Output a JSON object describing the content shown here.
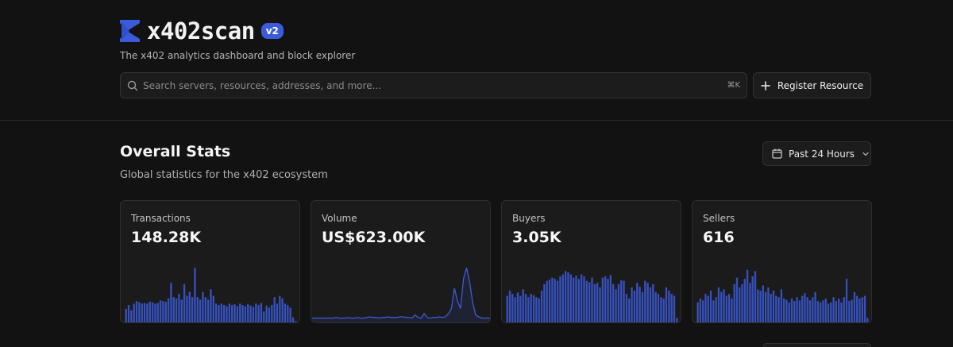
{
  "brand": {
    "name": "x402scan",
    "version": "v2",
    "tagline": "The x402 analytics dashboard and block explorer",
    "accent": "#3b5bdb"
  },
  "search": {
    "placeholder": "Search servers, resources, addresses, and more...",
    "shortcut": "⌘K",
    "icon": "search-icon"
  },
  "register": {
    "label": "Register Resource",
    "icon": "plus-icon"
  },
  "stats": {
    "title": "Overall Stats",
    "subtitle": "Global statistics for the x402 ecosystem",
    "range": {
      "label": "Past 24 Hours",
      "icon": "calendar-icon"
    }
  },
  "cards": [
    {
      "label": "Transactions",
      "value": "148.28K",
      "chart_type": "bar",
      "bars": [
        22,
        28,
        20,
        30,
        34,
        32,
        30,
        31,
        30,
        33,
        32,
        30,
        31,
        35,
        34,
        33,
        38,
        62,
        40,
        38,
        45,
        36,
        60,
        42,
        48,
        40,
        85,
        40,
        36,
        48,
        40,
        36,
        52,
        42,
        30,
        28,
        30,
        28,
        26,
        30,
        28,
        29,
        26,
        30,
        28,
        26,
        29,
        27,
        25,
        30,
        28,
        31,
        18,
        27,
        24,
        28,
        40,
        30,
        42,
        38,
        30,
        28,
        24,
        9,
        3
      ]
    },
    {
      "label": "Volume",
      "value": "US$623.00K",
      "chart_type": "line",
      "points": [
        3,
        3,
        3,
        3,
        3,
        3,
        3,
        3,
        4,
        3,
        3,
        3,
        4,
        3,
        3,
        4,
        3,
        3,
        4,
        5,
        4,
        4,
        3,
        4,
        4,
        5,
        4,
        4,
        4,
        5,
        5,
        4,
        4,
        3,
        8,
        4,
        3,
        10,
        4,
        3,
        4,
        4,
        5,
        4,
        5,
        10,
        18,
        50,
        30,
        18,
        65,
        82,
        60,
        28,
        8,
        5,
        3,
        3,
        3,
        3
      ]
    },
    {
      "label": "Buyers",
      "value": "3.05K",
      "chart_type": "bar",
      "bars": [
        42,
        50,
        45,
        40,
        47,
        42,
        52,
        45,
        40,
        45,
        43,
        40,
        38,
        50,
        60,
        65,
        67,
        70,
        68,
        65,
        72,
        75,
        80,
        78,
        75,
        70,
        73,
        68,
        75,
        72,
        65,
        63,
        70,
        60,
        62,
        55,
        70,
        72,
        68,
        74,
        60,
        52,
        60,
        66,
        65,
        45,
        38,
        55,
        50,
        62,
        56,
        48,
        65,
        62,
        55,
        60,
        48,
        45,
        40,
        38,
        55,
        50,
        45,
        42,
        8
      ]
    },
    {
      "label": "Sellers",
      "value": "616",
      "chart_type": "bar",
      "bars": [
        32,
        38,
        35,
        45,
        42,
        50,
        35,
        40,
        55,
        48,
        52,
        42,
        45,
        38,
        60,
        70,
        55,
        60,
        68,
        82,
        62,
        72,
        80,
        52,
        50,
        58,
        48,
        55,
        45,
        50,
        42,
        40,
        52,
        38,
        36,
        32,
        38,
        34,
        40,
        35,
        42,
        46,
        40,
        35,
        40,
        48,
        34,
        32,
        35,
        38,
        30,
        32,
        40,
        34,
        38,
        32,
        40,
        68,
        34,
        36,
        48,
        42,
        38,
        40,
        42,
        8
      ]
    }
  ]
}
